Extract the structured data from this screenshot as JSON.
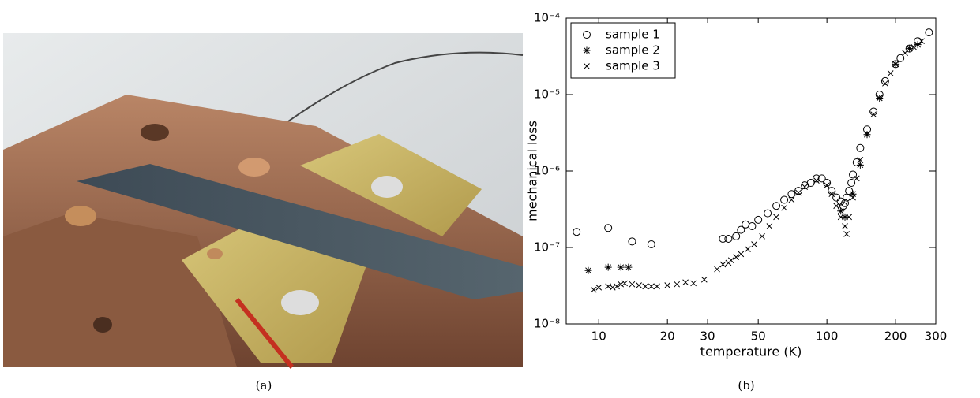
{
  "captions": {
    "a": "(a)",
    "b": "(b)"
  },
  "chart_data": {
    "type": "scatter",
    "xlabel": "temperature (K)",
    "ylabel": "mechanical loss",
    "xlog": true,
    "ylog": true,
    "xlim": [
      7.2,
      300
    ],
    "ylim": [
      1e-08,
      0.0001
    ],
    "xticks": [
      10,
      20,
      30,
      50,
      100,
      200,
      300
    ],
    "yticks": [
      {
        "value": 1e-08,
        "label": "10⁻⁸"
      },
      {
        "value": 1e-07,
        "label": "10⁻⁷"
      },
      {
        "value": 1e-06,
        "label": "10⁻⁶"
      },
      {
        "value": 1e-05,
        "label": "10⁻⁵"
      },
      {
        "value": 0.0001,
        "label": "10⁻⁴"
      }
    ],
    "legend": "upper left",
    "series": [
      {
        "name": "sample 1",
        "marker": "o",
        "color": "#000000",
        "x": [
          8,
          11,
          14,
          17,
          35,
          37,
          40,
          42,
          44,
          47,
          50,
          55,
          60,
          65,
          70,
          75,
          80,
          85,
          90,
          95,
          100,
          105,
          110,
          115,
          118,
          120,
          122,
          125,
          128,
          130,
          135,
          140,
          150,
          160,
          170,
          180,
          200,
          210,
          230,
          250,
          280
        ],
        "y": [
          1.6e-07,
          1.8e-07,
          1.2e-07,
          1.1e-07,
          1.3e-07,
          1.3e-07,
          1.4e-07,
          1.7e-07,
          2e-07,
          1.9e-07,
          2.3e-07,
          2.8e-07,
          3.5e-07,
          4.2e-07,
          5e-07,
          5.5e-07,
          6.5e-07,
          7e-07,
          8e-07,
          8e-07,
          7e-07,
          5.5e-07,
          4.5e-07,
          4e-07,
          3.5e-07,
          3.8e-07,
          4.5e-07,
          5.5e-07,
          7e-07,
          9e-07,
          1.3e-06,
          2e-06,
          3.5e-06,
          6e-06,
          1e-05,
          1.5e-05,
          2.5e-05,
          3e-05,
          4e-05,
          5e-05,
          6.5e-05
        ]
      },
      {
        "name": "sample 2",
        "marker": "*",
        "color": "#000000",
        "x": [
          9,
          11,
          12.5,
          13.5,
          115,
          120,
          130,
          140,
          150,
          170,
          200,
          230,
          250
        ],
        "y": [
          5e-08,
          5.5e-08,
          5.5e-08,
          5.5e-08,
          3e-07,
          2.5e-07,
          5e-07,
          1.2e-06,
          3e-06,
          9e-06,
          2.5e-05,
          4e-05,
          4.5e-05
        ]
      },
      {
        "name": "sample 3",
        "marker": "x",
        "color": "#000000",
        "x": [
          9.5,
          10,
          11,
          11.5,
          12,
          12.5,
          13,
          14,
          15,
          16,
          17,
          18,
          20,
          22,
          24,
          26,
          29,
          33,
          35,
          37,
          38,
          40,
          42,
          45,
          48,
          52,
          56,
          60,
          65,
          70,
          75,
          80,
          90,
          100,
          105,
          110,
          115,
          120,
          122,
          125,
          130,
          135,
          140,
          150,
          160,
          170,
          180,
          190,
          200,
          220,
          240,
          260
        ],
        "y": [
          2.8e-08,
          3e-08,
          3.1e-08,
          3e-08,
          3.1e-08,
          3.3e-08,
          3.4e-08,
          3.3e-08,
          3.2e-08,
          3.1e-08,
          3.1e-08,
          3.1e-08,
          3.2e-08,
          3.3e-08,
          3.5e-08,
          3.4e-08,
          3.8e-08,
          5.2e-08,
          6e-08,
          6.3e-08,
          6.8e-08,
          7.5e-08,
          8.2e-08,
          9.5e-08,
          1.1e-07,
          1.4e-07,
          1.9e-07,
          2.5e-07,
          3.3e-07,
          4.2e-07,
          5.2e-07,
          6.2e-07,
          7.5e-07,
          6.5e-07,
          5e-07,
          3.5e-07,
          2.5e-07,
          1.9e-07,
          1.5e-07,
          2.5e-07,
          4.5e-07,
          8e-07,
          1.4e-06,
          3e-06,
          5.5e-06,
          9e-06,
          1.4e-05,
          1.9e-05,
          2.5e-05,
          3.5e-05,
          4.2e-05,
          5e-05
        ]
      }
    ]
  }
}
